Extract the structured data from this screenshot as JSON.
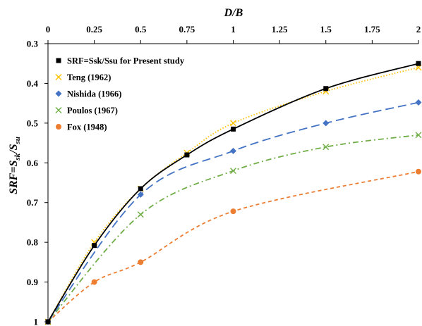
{
  "chart_data": {
    "type": "line",
    "title": "",
    "xlabel": "D/B",
    "xaxis_position": "top",
    "xlim": [
      0,
      2
    ],
    "xticks": [
      0,
      0.25,
      0.5,
      0.75,
      1,
      1.25,
      1.5,
      1.75,
      2
    ],
    "xtick_labels": [
      "0",
      "0.25",
      "0.5",
      "0.75",
      "1",
      "1.25",
      "1.5",
      "1.75",
      "2"
    ],
    "ylabel": {
      "prefix": "SRF=S",
      "sub1": "sk",
      "mid": "/S",
      "sub2": "su"
    },
    "ylim": [
      0.3,
      1
    ],
    "y_inverted": true,
    "yticks": [
      0.3,
      0.4,
      0.5,
      0.6,
      0.7,
      0.8,
      0.9,
      1
    ],
    "ytick_labels": [
      "0.3",
      "0.4",
      "0.5",
      "0.6",
      "0.7",
      "0.8",
      "0.9",
      "1"
    ],
    "grid": false,
    "legend_position": "top-left",
    "series": [
      {
        "name": "SRF=Ssk/Ssu for Present study",
        "color": "#000000",
        "marker": "square",
        "line_style": "solid",
        "x": [
          0,
          0.25,
          0.5,
          0.75,
          1,
          1.5,
          2
        ],
        "y": [
          1.0,
          0.808,
          0.665,
          0.58,
          0.515,
          0.413,
          0.35
        ]
      },
      {
        "name": "Teng (1962)",
        "color": "#ffc000",
        "marker": "x",
        "line_style": "dotted",
        "x": [
          0,
          0.25,
          0.5,
          0.75,
          1,
          1.5,
          2
        ],
        "y": [
          1.0,
          0.8,
          0.665,
          0.575,
          0.5,
          0.42,
          0.36
        ]
      },
      {
        "name": "Nishida (1966)",
        "color": "#4472c4",
        "marker": "diamond",
        "line_style": "long-dash",
        "x": [
          0,
          0.5,
          1,
          1.5,
          2
        ],
        "y": [
          1.0,
          0.68,
          0.57,
          0.5,
          0.448
        ]
      },
      {
        "name": "Poulos (1967)",
        "color": "#70ad47",
        "marker": "x",
        "line_style": "dash-dot",
        "x": [
          0,
          0.5,
          1,
          1.5,
          2
        ],
        "y": [
          1.0,
          0.73,
          0.62,
          0.56,
          0.53
        ]
      },
      {
        "name": "Fox (1948)",
        "color": "#ed7d31",
        "marker": "circle",
        "line_style": "dashed",
        "x": [
          0,
          0.25,
          0.5,
          1,
          2
        ],
        "y": [
          1.0,
          0.9,
          0.85,
          0.722,
          0.622
        ]
      }
    ]
  }
}
